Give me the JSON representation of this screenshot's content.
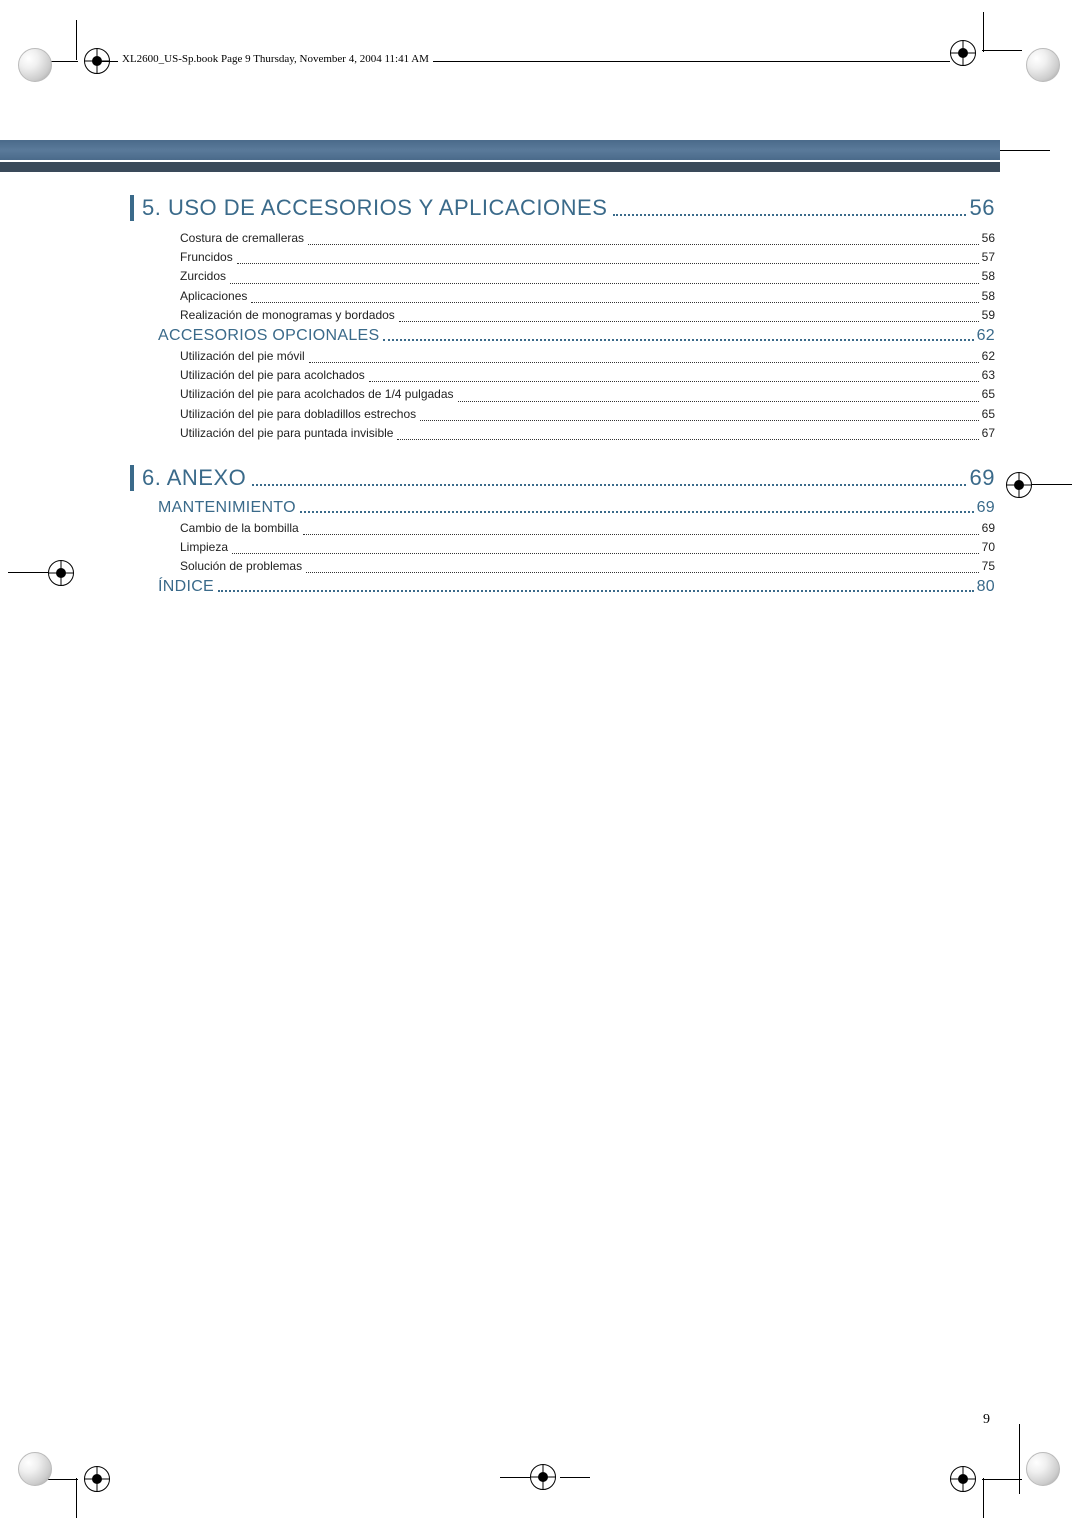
{
  "headerText": "XL2600_US-Sp.book  Page 9  Thursday, November 4, 2004  11:41 AM",
  "colors": {
    "accent": "#3a6a8a",
    "headerBarLight": "#5a7a9a",
    "headerBarDark": "#3a4a5a"
  },
  "sections": [
    {
      "title": "5. USO DE ACCESORIOS Y APLICACIONES",
      "page": "56",
      "subs": [
        {
          "entries": [
            {
              "label": "Costura de cremalleras",
              "page": "56"
            },
            {
              "label": "Fruncidos",
              "page": "57"
            },
            {
              "label": "Zurcidos",
              "page": "58"
            },
            {
              "label": "Aplicaciones",
              "page": "58"
            },
            {
              "label": "Realización de monogramas y bordados",
              "page": "59"
            }
          ]
        },
        {
          "title": "ACCESORIOS OPCIONALES",
          "page": "62",
          "entries": [
            {
              "label": "Utilización del pie móvil",
              "page": "62"
            },
            {
              "label": "Utilización del pie para acolchados",
              "page": "63"
            },
            {
              "label": "Utilización del pie para acolchados de 1/4 pulgadas",
              "page": "65"
            },
            {
              "label": "Utilización del pie para dobladillos estrechos",
              "page": "65"
            },
            {
              "label": "Utilización del pie para puntada invisible",
              "page": "67"
            }
          ]
        }
      ]
    },
    {
      "title": "6. ANEXO",
      "page": "69",
      "subs": [
        {
          "title": "MANTENIMIENTO",
          "page": "69",
          "entries": [
            {
              "label": "Cambio de la bombilla",
              "page": "69"
            },
            {
              "label": "Limpieza",
              "page": "70"
            },
            {
              "label": "Solución de problemas",
              "page": "75"
            }
          ]
        },
        {
          "title": "ÍNDICE",
          "page": "80",
          "entries": []
        }
      ]
    }
  ],
  "pageNumber": "9"
}
